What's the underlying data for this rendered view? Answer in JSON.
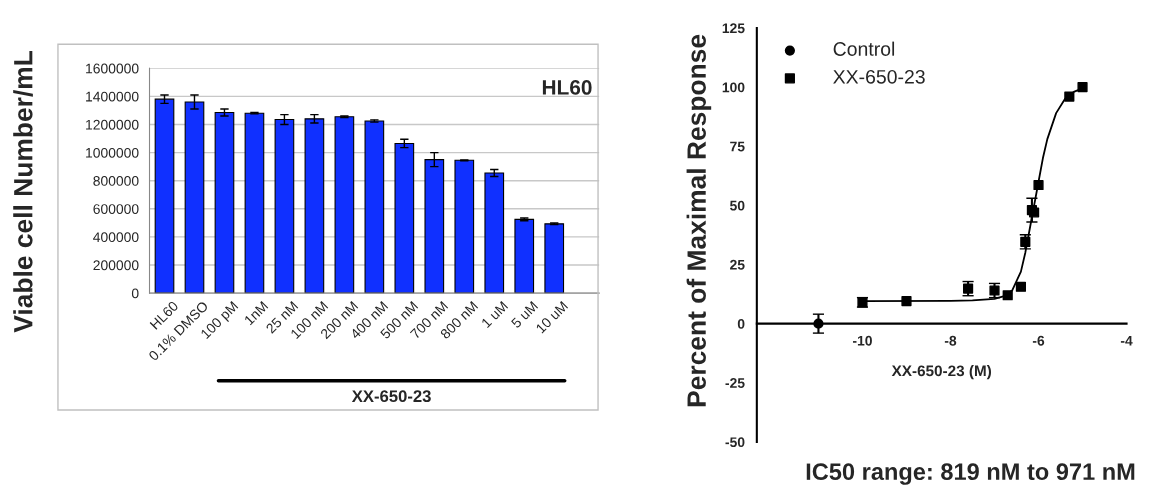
{
  "chart_data": [
    {
      "type": "bar",
      "title": "HL60",
      "ylabel": "Viable cell Number/mL",
      "categories": [
        "HL60",
        "0.1% DMSO",
        "100 pM",
        "1nM",
        "25 nM",
        "100 nM",
        "200 nM",
        "400 nM",
        "500 nM",
        "700 nM",
        "800 nM",
        "1 uM",
        "5 uM",
        "10 uM",
        null
      ],
      "values": [
        1380000,
        1360000,
        1285000,
        1280000,
        1235000,
        1240000,
        1255000,
        1225000,
        1065000,
        950000,
        945000,
        855000,
        525000,
        493000,
        null
      ],
      "errors": [
        30000,
        50000,
        25000,
        5000,
        35000,
        30000,
        5000,
        8000,
        30000,
        50000,
        3000,
        25000,
        10000,
        6000,
        null
      ],
      "color": "#1030ff",
      "ylim": [
        0,
        1600000
      ],
      "yticks": [
        0,
        200000,
        400000,
        600000,
        800000,
        1000000,
        1200000,
        1400000,
        1600000
      ],
      "grid": "y",
      "annotations": [
        "XX-650-23"
      ]
    },
    {
      "type": "scatter",
      "xlabel": "XX-650-23 (M)",
      "ylabel": "Percent of Maximal Response",
      "series": [
        {
          "name": "Control",
          "color": "#000000",
          "marker": "circle",
          "x": [
            -11
          ],
          "values": [
            0
          ],
          "errors": [
            4
          ]
        },
        {
          "name": "XX-650-23",
          "color": "#000000",
          "marker": "square",
          "x": [
            -10,
            -9,
            -7.6,
            -7,
            -6.7,
            -6.4,
            -6.3,
            -6.15,
            -6.1,
            -6,
            -5.3,
            -5
          ],
          "values": [
            9,
            9.5,
            14.8,
            14,
            12,
            15.6,
            34.6,
            48,
            47,
            58.6,
            96,
            100
          ],
          "errors": [
            2,
            null,
            3,
            3,
            null,
            null,
            3,
            5,
            null,
            null,
            null,
            null
          ]
        },
        {
          "type": "line",
          "color": "#000000",
          "x": [
            -10,
            -8,
            -7.5,
            -7,
            -6.8,
            -6.6,
            -6.4,
            -6.3,
            -6.2,
            -6.1,
            -6,
            -5.9,
            -5.8,
            -5.6,
            -5.4,
            -5.2,
            -5
          ],
          "values": [
            9.5,
            9.6,
            9.8,
            10.5,
            11.5,
            14,
            22,
            30,
            40,
            50,
            60,
            70,
            78,
            89,
            95,
            98,
            99.5
          ]
        }
      ],
      "xlim": [
        -12.4,
        -4
      ],
      "xticks": [
        -10,
        -8,
        -6,
        -4
      ],
      "ylim": [
        -50,
        125
      ],
      "yticks": [
        -50,
        -25,
        0,
        25,
        50,
        75,
        100,
        125
      ],
      "legend": "top left",
      "annotations": [
        "IC50 range: 819 nM to 971 nM"
      ]
    }
  ]
}
